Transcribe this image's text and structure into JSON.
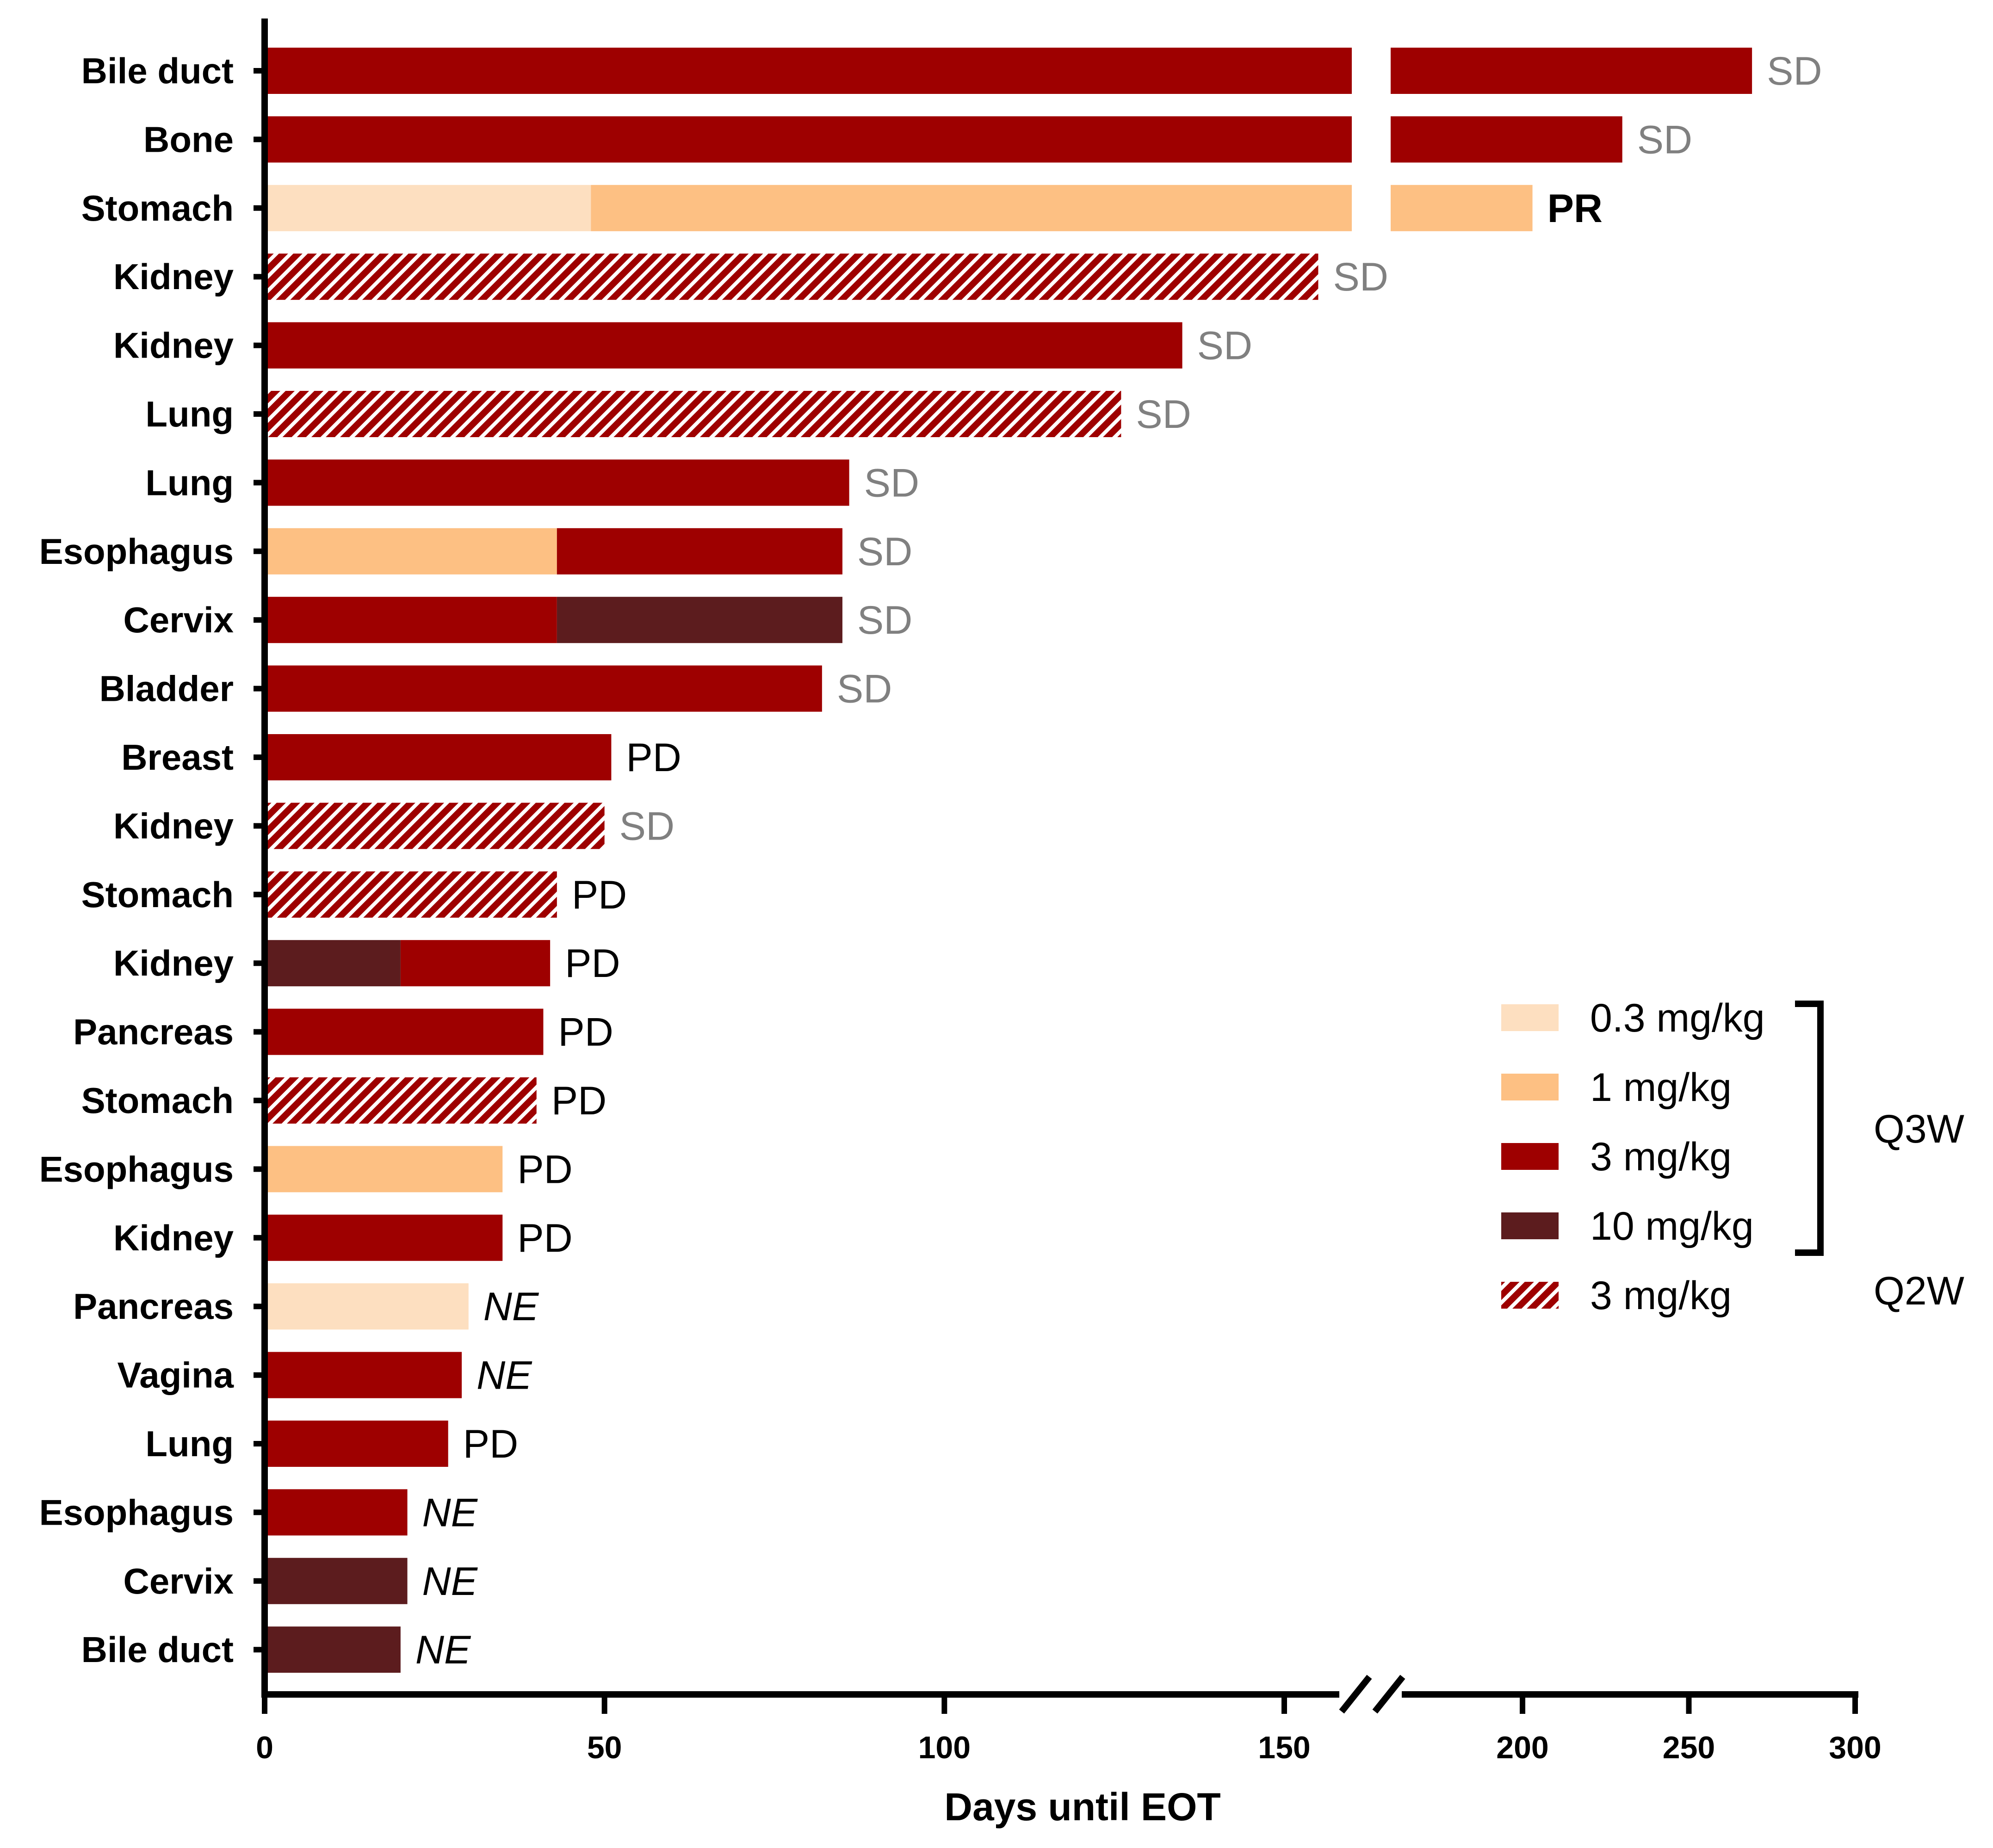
{
  "chart_data": {
    "type": "bar",
    "orientation": "horizontal",
    "xlabel": "Days until EOT",
    "x_ticks": [
      0,
      50,
      100,
      150,
      200,
      250,
      300
    ],
    "axis_break": {
      "from": 160,
      "to": 175
    },
    "xlim": [
      0,
      300
    ],
    "colors": {
      "0.3 mg/kg Q3W": "#FDDFC0",
      "1 mg/kg Q3W": "#FDC083",
      "3 mg/kg Q3W": "#9E0000",
      "10 mg/kg Q3W": "#5C1C1E",
      "3 mg/kg Q2W": "#9E0000"
    },
    "response_colors": {
      "SD": "#808080",
      "PR": "#000000",
      "PD": "#000000",
      "NE": "#000000"
    },
    "rows": [
      {
        "category": "Bile duct",
        "response": "SD",
        "segments": [
          {
            "dose": "3 mg/kg Q3W",
            "start": 0,
            "end": 269
          }
        ]
      },
      {
        "category": "Bone",
        "response": "SD",
        "segments": [
          {
            "dose": "3 mg/kg Q3W",
            "start": 0,
            "end": 230
          }
        ]
      },
      {
        "category": "Stomach",
        "response": "PR",
        "response_bold": true,
        "segments": [
          {
            "dose": "0.3 mg/kg Q3W",
            "start": 0,
            "end": 48
          },
          {
            "dose": "1 mg/kg Q3W",
            "start": 48,
            "end": 203
          }
        ]
      },
      {
        "category": "Kidney",
        "response": "SD",
        "segments": [
          {
            "dose": "3 mg/kg Q2W",
            "start": 0,
            "end": 155
          }
        ]
      },
      {
        "category": "Kidney",
        "response": "SD",
        "segments": [
          {
            "dose": "3 mg/kg Q3W",
            "start": 0,
            "end": 135
          }
        ]
      },
      {
        "category": "Lung",
        "response": "SD",
        "segments": [
          {
            "dose": "3 mg/kg Q2W",
            "start": 0,
            "end": 126
          }
        ]
      },
      {
        "category": "Lung",
        "response": "SD",
        "segments": [
          {
            "dose": "3 mg/kg Q3W",
            "start": 0,
            "end": 86
          }
        ]
      },
      {
        "category": "Esophagus",
        "response": "SD",
        "segments": [
          {
            "dose": "1 mg/kg Q3W",
            "start": 0,
            "end": 43
          },
          {
            "dose": "3 mg/kg Q3W",
            "start": 43,
            "end": 85
          }
        ]
      },
      {
        "category": "Cervix",
        "response": "SD",
        "segments": [
          {
            "dose": "3 mg/kg Q3W",
            "start": 0,
            "end": 43
          },
          {
            "dose": "10 mg/kg Q3W",
            "start": 43,
            "end": 85
          }
        ]
      },
      {
        "category": "Bladder",
        "response": "SD",
        "segments": [
          {
            "dose": "3 mg/kg Q3W",
            "start": 0,
            "end": 82
          }
        ]
      },
      {
        "category": "Breast",
        "response": "PD",
        "segments": [
          {
            "dose": "3 mg/kg Q3W",
            "start": 0,
            "end": 51
          }
        ]
      },
      {
        "category": "Kidney",
        "response": "SD",
        "response_grey": true,
        "segments": [
          {
            "dose": "3 mg/kg Q2W",
            "start": 0,
            "end": 50
          }
        ]
      },
      {
        "category": "Stomach",
        "response": "PD",
        "segments": [
          {
            "dose": "3 mg/kg Q2W",
            "start": 0,
            "end": 43
          }
        ]
      },
      {
        "category": "Kidney",
        "response": "PD",
        "segments": [
          {
            "dose": "10 mg/kg Q3W",
            "start": 0,
            "end": 20
          },
          {
            "dose": "3 mg/kg Q3W",
            "start": 20,
            "end": 42
          }
        ]
      },
      {
        "category": "Pancreas",
        "response": "PD",
        "segments": [
          {
            "dose": "3 mg/kg Q3W",
            "start": 0,
            "end": 41
          }
        ]
      },
      {
        "category": "Stomach",
        "response": "PD",
        "segments": [
          {
            "dose": "3 mg/kg Q2W",
            "start": 0,
            "end": 40
          }
        ]
      },
      {
        "category": "Esophagus",
        "response": "PD",
        "segments": [
          {
            "dose": "1 mg/kg Q3W",
            "start": 0,
            "end": 35
          }
        ]
      },
      {
        "category": "Kidney",
        "response": "PD",
        "segments": [
          {
            "dose": "3 mg/kg Q3W",
            "start": 0,
            "end": 35
          }
        ]
      },
      {
        "category": "Pancreas",
        "response": "NE",
        "response_italic": true,
        "segments": [
          {
            "dose": "0.3 mg/kg Q3W",
            "start": 0,
            "end": 30
          }
        ]
      },
      {
        "category": "Vagina",
        "response": "NE",
        "response_italic": true,
        "segments": [
          {
            "dose": "3 mg/kg Q3W",
            "start": 0,
            "end": 29
          }
        ]
      },
      {
        "category": "Lung",
        "response": "PD",
        "segments": [
          {
            "dose": "3 mg/kg Q3W",
            "start": 0,
            "end": 27
          }
        ]
      },
      {
        "category": "Esophagus",
        "response": "NE",
        "response_italic": true,
        "segments": [
          {
            "dose": "3 mg/kg Q3W",
            "start": 0,
            "end": 21
          }
        ]
      },
      {
        "category": "Cervix",
        "response": "NE",
        "response_italic": true,
        "segments": [
          {
            "dose": "10 mg/kg Q3W",
            "start": 0,
            "end": 21
          }
        ]
      },
      {
        "category": "Bile duct",
        "response": "NE",
        "response_italic": true,
        "segments": [
          {
            "dose": "10 mg/kg Q3W",
            "start": 0,
            "end": 20
          }
        ]
      }
    ],
    "legend": {
      "placement": "right",
      "items": [
        {
          "label": "0.3 mg/kg",
          "dose": "0.3 mg/kg Q3W"
        },
        {
          "label": "1 mg/kg",
          "dose": "1 mg/kg Q3W"
        },
        {
          "label": "3 mg/kg",
          "dose": "3 mg/kg Q3W"
        },
        {
          "label": "10 mg/kg",
          "dose": "10 mg/kg Q3W"
        },
        {
          "label": "3 mg/kg",
          "dose": "3 mg/kg Q2W",
          "hatched": true
        }
      ],
      "groups": [
        "Q3W",
        "Q2W"
      ]
    }
  }
}
